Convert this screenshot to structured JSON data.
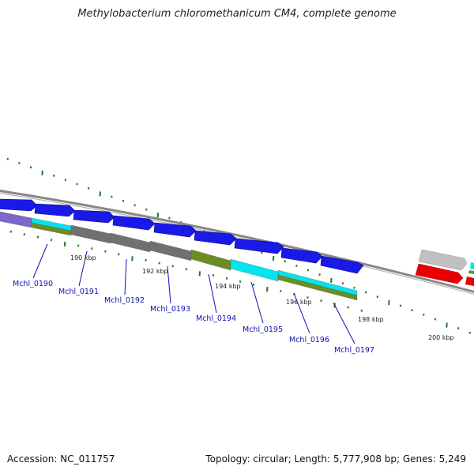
{
  "title": "Methylobacterium chloromethanicum CM4, complete genome",
  "footer": {
    "accession": "Accession: NC_011757",
    "summary": "Topology: circular; Length: 5,777,908 bp; Genes: 5,249"
  },
  "scale_labels": [
    "190 kbp",
    "192 kbp",
    "194 kbp",
    "196 kbp",
    "198 kbp",
    "200 kbp"
  ],
  "genes": [
    {
      "label": "Mchl_0190"
    },
    {
      "label": "Mchl_0191"
    },
    {
      "label": "Mchl_0192"
    },
    {
      "label": "Mchl_0193"
    },
    {
      "label": "Mchl_0194"
    },
    {
      "label": "Mchl_0195"
    },
    {
      "label": "Mchl_0196"
    },
    {
      "label": "Mchl_0197"
    }
  ],
  "colors": {
    "cds": "#1a1ae8",
    "backbone": "#888888",
    "tick": "#1e7a1e",
    "label": "#1010b0",
    "cog_purple": "#7b68c8",
    "cog_gray": "#707070",
    "cog_olive": "#6b8e23",
    "cog_cyan": "#00e5ee",
    "red": "#e80000",
    "lightgray": "#c0c0c0"
  }
}
